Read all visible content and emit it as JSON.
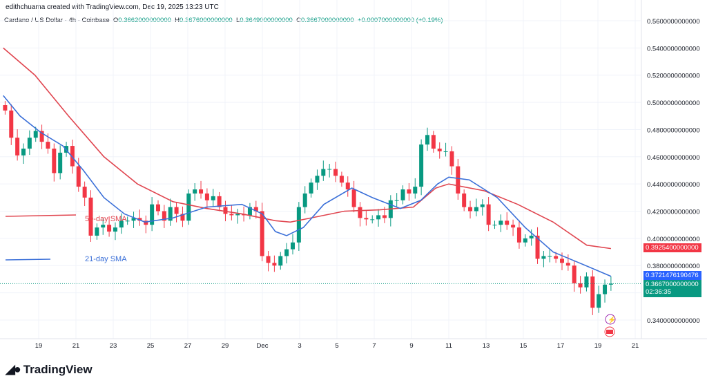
{
  "header": {
    "credit": "edithchuama created with TradingView.com, Dec 19, 2025 13:23 UTC"
  },
  "legend": {
    "symbol": "Cardano / US Dollar · 4h · Coinbase",
    "o_label": "O",
    "o": "0.3662000000000",
    "h_label": "H",
    "h": "0.3676000000000",
    "l_label": "L",
    "l": "0.3649000000000",
    "c_label": "C",
    "c": "0.3667000000000",
    "change": "+0.0007000000000 (+0.19%)"
  },
  "tags": {
    "sma50": "0.3925400000000",
    "sma21": "0.3721476190476",
    "last": "0.3667000000000",
    "countdown": "02:36:35"
  },
  "logo": "TradingView",
  "colors": {
    "up": "#089981",
    "down": "#f23645",
    "sma50": "#e0454f",
    "sma21": "#3a6fd8"
  },
  "chart_data": {
    "type": "candlestick",
    "title": "Cardano / US Dollar · 4h · Coinbase",
    "ylim": [
      0.33,
      0.56
    ],
    "yticks": [
      "0.5600000000000",
      "0.5400000000000",
      "0.5200000000000",
      "0.5000000000000",
      "0.4800000000000",
      "0.4600000000000",
      "0.4400000000000",
      "0.4200000000000",
      "0.4000000000000",
      "0.3800000000000",
      "0.3400000000000"
    ],
    "ytick_values": [
      0.56,
      0.54,
      0.52,
      0.5,
      0.48,
      0.46,
      0.44,
      0.42,
      0.4,
      0.38,
      0.34
    ],
    "xticks": [
      {
        "t": 2,
        "label": "19"
      },
      {
        "t": 4,
        "label": "21"
      },
      {
        "t": 6,
        "label": "23"
      },
      {
        "t": 8,
        "label": "25"
      },
      {
        "t": 10,
        "label": "27"
      },
      {
        "t": 12,
        "label": "29"
      },
      {
        "t": 14,
        "label": "Dec"
      },
      {
        "t": 16,
        "label": "3"
      },
      {
        "t": 18,
        "label": "5"
      },
      {
        "t": 20,
        "label": "7"
      },
      {
        "t": 22,
        "label": "9"
      },
      {
        "t": 24,
        "label": "11"
      },
      {
        "t": 26,
        "label": "13"
      },
      {
        "t": 28,
        "label": "15"
      },
      {
        "t": 30,
        "label": "17"
      },
      {
        "t": 32,
        "label": "19"
      },
      {
        "t": 34,
        "label": "21"
      }
    ],
    "xrange_days": [
      0,
      35.5
    ],
    "candle_span": [
      0.2,
      32.7
    ],
    "closes": [
      0.494,
      0.474,
      0.461,
      0.466,
      0.474,
      0.479,
      0.471,
      0.466,
      0.448,
      0.463,
      0.468,
      0.453,
      0.438,
      0.43,
      0.402,
      0.408,
      0.41,
      0.405,
      0.408,
      0.413,
      0.413,
      0.415,
      0.413,
      0.41,
      0.425,
      0.42,
      0.413,
      0.423,
      0.418,
      0.413,
      0.433,
      0.436,
      0.433,
      0.428,
      0.431,
      0.423,
      0.418,
      0.417,
      0.418,
      0.417,
      0.423,
      0.42,
      0.387,
      0.382,
      0.38,
      0.387,
      0.392,
      0.397,
      0.423,
      0.433,
      0.441,
      0.446,
      0.451,
      0.451,
      0.446,
      0.441,
      0.436,
      0.423,
      0.415,
      0.414,
      0.414,
      0.417,
      0.415,
      0.428,
      0.428,
      0.436,
      0.433,
      0.438,
      0.469,
      0.476,
      0.466,
      0.464,
      0.464,
      0.453,
      0.433,
      0.423,
      0.42,
      0.423,
      0.425,
      0.41,
      0.41,
      0.413,
      0.41,
      0.408,
      0.397,
      0.4,
      0.402,
      0.385,
      0.387,
      0.387,
      0.385,
      0.382,
      0.38,
      0.367,
      0.364,
      0.372,
      0.349,
      0.359,
      0.366,
      0.3667
    ],
    "series": [
      {
        "name": "50-day SMA",
        "points": [
          [
            0.1,
            0.54
          ],
          [
            1.8,
            0.52
          ],
          [
            3.6,
            0.49
          ],
          [
            5.5,
            0.46
          ],
          [
            7.3,
            0.44
          ],
          [
            9.2,
            0.427
          ],
          [
            11,
            0.422
          ],
          [
            12.9,
            0.418
          ],
          [
            14.7,
            0.413
          ],
          [
            15.5,
            0.412
          ],
          [
            16.6,
            0.415
          ],
          [
            18.4,
            0.42
          ],
          [
            20.3,
            0.421
          ],
          [
            22.1,
            0.423
          ],
          [
            23.3,
            0.437
          ],
          [
            24,
            0.44
          ],
          [
            25.9,
            0.435
          ],
          [
            27.7,
            0.425
          ],
          [
            29.6,
            0.412
          ],
          [
            31.4,
            0.395
          ],
          [
            32.7,
            0.3925
          ]
        ]
      },
      {
        "name": "21-day SMA",
        "points": [
          [
            0.1,
            0.505
          ],
          [
            1,
            0.49
          ],
          [
            2.1,
            0.478
          ],
          [
            3.3,
            0.468
          ],
          [
            4.4,
            0.45
          ],
          [
            5.5,
            0.43
          ],
          [
            6.6,
            0.418
          ],
          [
            7.7,
            0.412
          ],
          [
            9.2,
            0.415
          ],
          [
            11,
            0.423
          ],
          [
            12.9,
            0.425
          ],
          [
            14,
            0.418
          ],
          [
            14.7,
            0.405
          ],
          [
            15.3,
            0.402
          ],
          [
            16.2,
            0.408
          ],
          [
            17.3,
            0.425
          ],
          [
            18.8,
            0.437
          ],
          [
            19.9,
            0.43
          ],
          [
            21.4,
            0.422
          ],
          [
            22.5,
            0.428
          ],
          [
            23.4,
            0.44
          ],
          [
            24,
            0.445
          ],
          [
            25.1,
            0.443
          ],
          [
            26.6,
            0.43
          ],
          [
            28.1,
            0.408
          ],
          [
            29.6,
            0.39
          ],
          [
            31,
            0.382
          ],
          [
            32.7,
            0.3721
          ]
        ]
      }
    ],
    "annotations": [
      "50-day SMA",
      "21-day SMA"
    ]
  }
}
